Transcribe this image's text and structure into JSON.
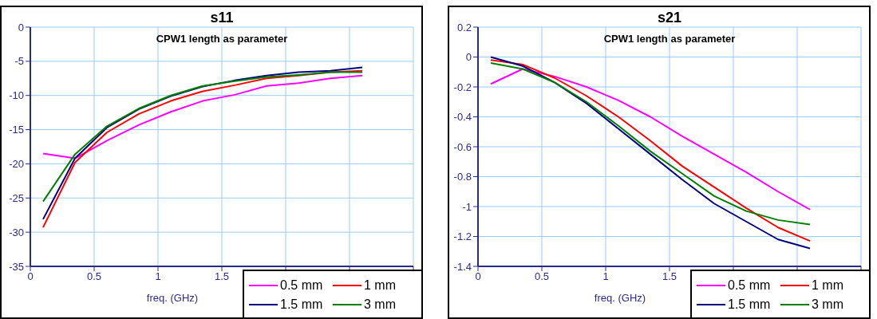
{
  "chart_data": [
    {
      "type": "line",
      "title": "s11",
      "subtitle": "CPW1 length as parameter",
      "xlabel": "freq. (GHz)",
      "x": [
        0.1,
        0.35,
        0.6,
        0.85,
        1.1,
        1.35,
        1.6,
        1.85,
        2.1,
        2.35,
        2.6
      ],
      "series": [
        {
          "name": "0.5 mm",
          "color": "#ff00ff",
          "values": [
            -18.5,
            -19.2,
            -16.6,
            -14.3,
            -12.4,
            -10.8,
            -9.9,
            -8.6,
            -8.2,
            -7.5,
            -7.1
          ]
        },
        {
          "name": "1 mm",
          "color": "#ff0000",
          "values": [
            -29.3,
            -19.8,
            -15.4,
            -12.7,
            -10.8,
            -9.4,
            -8.5,
            -7.5,
            -7.1,
            -6.6,
            -6.4
          ]
        },
        {
          "name": "1.5 mm",
          "color": "#000080",
          "values": [
            -28.1,
            -19.2,
            -14.7,
            -12.0,
            -10.1,
            -8.7,
            -7.8,
            -7.1,
            -6.6,
            -6.4,
            -5.9
          ]
        },
        {
          "name": "3 mm",
          "color": "#008000",
          "values": [
            -25.5,
            -18.6,
            -14.5,
            -11.9,
            -10.0,
            -8.6,
            -7.9,
            -7.3,
            -7.0,
            -6.6,
            -6.6
          ]
        }
      ],
      "xlim": [
        0,
        3
      ],
      "xticks": [
        0,
        0.5,
        1,
        1.5,
        {
          "value": 2,
          "label": null
        },
        {
          "value": 2.5,
          "label": null
        },
        {
          "value": 3,
          "label": null
        }
      ],
      "ylim": [
        -35,
        0
      ],
      "yticks": [
        -35,
        -30,
        -25,
        -20,
        -15,
        -10,
        -5,
        0
      ],
      "grid": true,
      "legend": "bottom right"
    },
    {
      "type": "line",
      "title": "s21",
      "subtitle": "CPW1 length as parameter",
      "xlabel": "freq. (GHz)",
      "x": [
        0.1,
        0.35,
        0.6,
        0.85,
        1.1,
        1.35,
        1.6,
        1.85,
        2.1,
        2.35,
        2.6
      ],
      "series": [
        {
          "name": "0.5 mm",
          "color": "#ff00ff",
          "values": [
            -0.18,
            -0.08,
            -0.13,
            -0.2,
            -0.29,
            -0.4,
            -0.53,
            -0.65,
            -0.77,
            -0.9,
            -1.02
          ]
        },
        {
          "name": "1 mm",
          "color": "#ff0000",
          "values": [
            -0.02,
            -0.05,
            -0.14,
            -0.26,
            -0.4,
            -0.56,
            -0.73,
            -0.87,
            -1.01,
            -1.14,
            -1.23
          ]
        },
        {
          "name": "1.5 mm",
          "color": "#000080",
          "values": [
            0.0,
            -0.06,
            -0.17,
            -0.31,
            -0.48,
            -0.65,
            -0.82,
            -0.98,
            -1.1,
            -1.22,
            -1.28
          ]
        },
        {
          "name": "3 mm",
          "color": "#008000",
          "values": [
            -0.04,
            -0.08,
            -0.17,
            -0.3,
            -0.46,
            -0.63,
            -0.78,
            -0.93,
            -1.03,
            -1.09,
            -1.12
          ]
        }
      ],
      "xlim": [
        0,
        3
      ],
      "xticks": [
        0,
        0.5,
        1,
        1.5,
        {
          "value": 2,
          "label": null
        },
        {
          "value": 2.5,
          "label": null
        },
        {
          "value": 3,
          "label": null
        }
      ],
      "ylim": [
        -1.4,
        0.2
      ],
      "yticks": [
        -1.4,
        -1.2,
        -1,
        -0.8,
        -0.6,
        -0.4,
        -0.2,
        0,
        0.2
      ],
      "grid": true,
      "legend": "bottom right"
    }
  ]
}
